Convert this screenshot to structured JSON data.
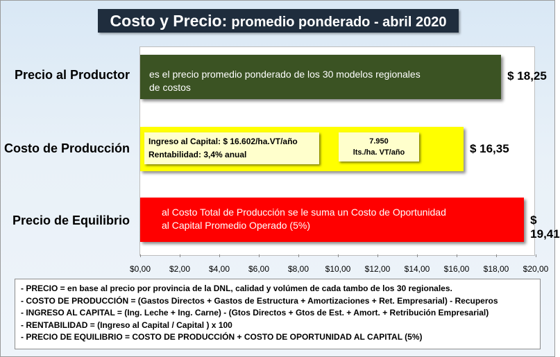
{
  "title": {
    "main": "Costo  y Precio:",
    "sub": "promedio ponderado - abril 2020"
  },
  "chart_data": {
    "type": "bar",
    "orientation": "horizontal",
    "categories": [
      "Precio al Productor",
      "Costo de Producción",
      "Precio de Equilibrio"
    ],
    "values": [
      18.25,
      16.35,
      19.41
    ],
    "value_labels": [
      "$ 18,25",
      "$ 16,35",
      "$ 19,41"
    ],
    "colors": [
      "#3b5323",
      "#ffff00",
      "#ff0000"
    ],
    "xlim": [
      0,
      20
    ],
    "x_ticks": [
      0,
      2,
      4,
      6,
      8,
      10,
      12,
      14,
      16,
      18,
      20
    ],
    "x_tick_labels": [
      "$0,00",
      "$2,00",
      "$4,00",
      "$6,00",
      "$8,00",
      "$10,00",
      "$12,00",
      "$14,00",
      "$16,00",
      "$18,00",
      "$20,00"
    ],
    "grid": false,
    "bar_texts": [
      [
        "es el precio promedio ponderado de los 30 modelos regionales",
        "de costos"
      ],
      [],
      [
        "al Costo Total de Producción se le suma un Costo de Oportunidad",
        "al Capital Promedio Operado (5%)"
      ]
    ],
    "annotations": [
      {
        "lines": [
          "Ingreso al Capital: $ 16.602/ha.VT/año",
          "Rentabilidad: 3,4% anual"
        ]
      },
      {
        "lines": [
          "7.950",
          "lts./ha. VT/año"
        ]
      }
    ]
  },
  "notes": [
    "- PRECIO = en base al precio por provincia de la DNL, calidad y volúmen de cada tambo de los 30 regionales.",
    "- COSTO DE PRODUCCIÓN = (Gastos Directos + Gastos de Estructura + Amortizaciones + Ret. Empresarial) - Recuperos",
    "- INGRESO AL CAPITAL = (Ing. Leche + Ing. Carne) - (Gtos Directos + Gtos de Est. + Amort. + Retribución Empresarial)",
    "- RENTABILIDAD = (Ingreso al Capital / Capital ) x 100",
    "- PRECIO DE EQUILIBRIO = COSTO DE PRODUCCIÓN + COSTO DE OPORTUNIDAD AL CAPITAL (5%)"
  ]
}
